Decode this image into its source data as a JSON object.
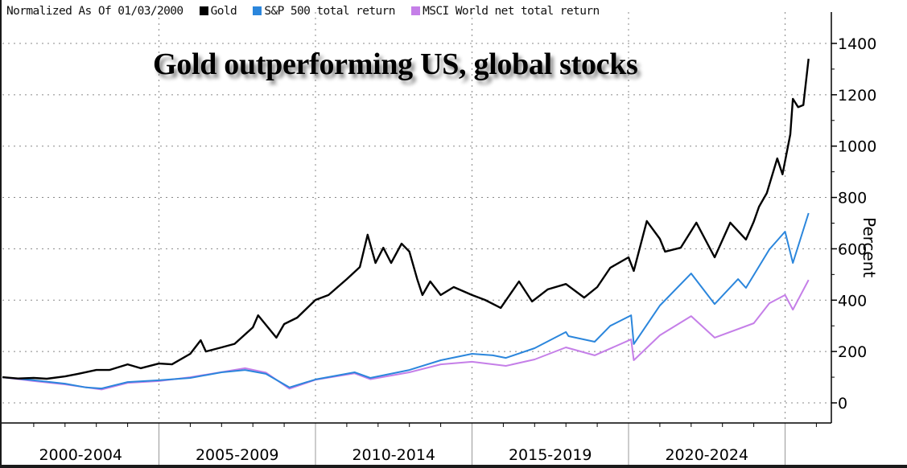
{
  "chart_data": {
    "type": "line",
    "title": "Gold outperforming US, global stocks",
    "legend_title": "Normalized As Of 01/03/2000",
    "legend_placement": "top-left",
    "ylabel": "Percent",
    "ylim": [
      -80,
      1480
    ],
    "yticks": [
      0,
      200,
      400,
      600,
      800,
      1000,
      1200,
      1400
    ],
    "xlim": [
      "2000-01",
      "2026-04"
    ],
    "x_bands": [
      "2000-2004",
      "2005-2009",
      "2010-2014",
      "2015-2019",
      "2020-2024"
    ],
    "grid": true,
    "series": [
      {
        "name": "Gold",
        "color": "#000000",
        "points": [
          [
            "2000-01",
            100
          ],
          [
            "2000-07",
            95
          ],
          [
            "2001-01",
            97
          ],
          [
            "2001-06",
            94
          ],
          [
            "2002-01",
            103
          ],
          [
            "2002-06",
            113
          ],
          [
            "2003-01",
            128
          ],
          [
            "2003-06",
            128
          ],
          [
            "2004-01",
            150
          ],
          [
            "2004-06",
            135
          ],
          [
            "2005-01",
            153
          ],
          [
            "2005-06",
            150
          ],
          [
            "2006-01",
            191
          ],
          [
            "2006-05",
            244
          ],
          [
            "2006-07",
            200
          ],
          [
            "2007-01",
            216
          ],
          [
            "2007-06",
            230
          ],
          [
            "2008-01",
            294
          ],
          [
            "2008-03",
            341
          ],
          [
            "2008-10",
            254
          ],
          [
            "2009-01",
            307
          ],
          [
            "2009-06",
            332
          ],
          [
            "2010-01",
            401
          ],
          [
            "2010-06",
            420
          ],
          [
            "2011-01",
            482
          ],
          [
            "2011-06",
            529
          ],
          [
            "2011-09",
            655
          ],
          [
            "2011-12",
            545
          ],
          [
            "2012-03",
            604
          ],
          [
            "2012-06",
            545
          ],
          [
            "2012-10",
            620
          ],
          [
            "2013-01",
            589
          ],
          [
            "2013-04",
            482
          ],
          [
            "2013-06",
            420
          ],
          [
            "2013-09",
            473
          ],
          [
            "2014-01",
            420
          ],
          [
            "2014-06",
            451
          ],
          [
            "2015-01",
            420
          ],
          [
            "2015-06",
            401
          ],
          [
            "2015-12",
            370
          ],
          [
            "2016-07",
            473
          ],
          [
            "2016-12",
            395
          ],
          [
            "2017-06",
            442
          ],
          [
            "2018-01",
            463
          ],
          [
            "2018-08",
            410
          ],
          [
            "2019-01",
            451
          ],
          [
            "2019-06",
            526
          ],
          [
            "2020-01",
            567
          ],
          [
            "2020-03",
            514
          ],
          [
            "2020-08",
            708
          ],
          [
            "2021-01",
            639
          ],
          [
            "2021-03",
            589
          ],
          [
            "2021-09",
            604
          ],
          [
            "2022-03",
            702
          ],
          [
            "2022-10",
            567
          ],
          [
            "2023-04",
            702
          ],
          [
            "2023-10",
            636
          ],
          [
            "2024-01",
            706
          ],
          [
            "2024-03",
            764
          ],
          [
            "2024-06",
            817
          ],
          [
            "2024-10",
            952
          ],
          [
            "2024-12",
            890
          ],
          [
            "2025-03",
            1046
          ],
          [
            "2025-04",
            1184
          ],
          [
            "2025-06",
            1152
          ],
          [
            "2025-08",
            1160
          ],
          [
            "2025-10",
            1340
          ]
        ]
      },
      {
        "name": "S&P 500 total return",
        "color": "#2b86dc",
        "points": [
          [
            "2000-01",
            100
          ],
          [
            "2001-01",
            88
          ],
          [
            "2002-01",
            75
          ],
          [
            "2002-09",
            60
          ],
          [
            "2003-03",
            56
          ],
          [
            "2004-01",
            81
          ],
          [
            "2005-01",
            88
          ],
          [
            "2006-01",
            97
          ],
          [
            "2007-01",
            119
          ],
          [
            "2007-10",
            128
          ],
          [
            "2008-06",
            113
          ],
          [
            "2009-03",
            60
          ],
          [
            "2010-01",
            91
          ],
          [
            "2011-04",
            119
          ],
          [
            "2011-10",
            97
          ],
          [
            "2013-01",
            128
          ],
          [
            "2014-01",
            166
          ],
          [
            "2015-01",
            191
          ],
          [
            "2015-09",
            185
          ],
          [
            "2016-02",
            175
          ],
          [
            "2017-01",
            213
          ],
          [
            "2018-01",
            276
          ],
          [
            "2018-02",
            260
          ],
          [
            "2018-12",
            238
          ],
          [
            "2019-06",
            300
          ],
          [
            "2020-02",
            341
          ],
          [
            "2020-03",
            229
          ],
          [
            "2021-01",
            379
          ],
          [
            "2022-01",
            504
          ],
          [
            "2022-10",
            385
          ],
          [
            "2023-07",
            482
          ],
          [
            "2023-10",
            448
          ],
          [
            "2024-07",
            598
          ],
          [
            "2025-01",
            667
          ],
          [
            "2025-04",
            545
          ],
          [
            "2025-10",
            739
          ]
        ]
      },
      {
        "name": "MSCI World net total return",
        "color": "#c57fe8",
        "points": [
          [
            "2000-01",
            100
          ],
          [
            "2001-01",
            85
          ],
          [
            "2002-01",
            72
          ],
          [
            "2003-03",
            52
          ],
          [
            "2004-01",
            78
          ],
          [
            "2005-01",
            85
          ],
          [
            "2006-01",
            100
          ],
          [
            "2007-01",
            120
          ],
          [
            "2007-10",
            135
          ],
          [
            "2008-06",
            118
          ],
          [
            "2009-03",
            55
          ],
          [
            "2010-01",
            90
          ],
          [
            "2011-04",
            115
          ],
          [
            "2011-10",
            92
          ],
          [
            "2013-01",
            119
          ],
          [
            "2014-01",
            150
          ],
          [
            "2015-01",
            160
          ],
          [
            "2016-02",
            144
          ],
          [
            "2017-01",
            169
          ],
          [
            "2018-01",
            216
          ],
          [
            "2018-12",
            185
          ],
          [
            "2020-02",
            247
          ],
          [
            "2020-03",
            166
          ],
          [
            "2021-01",
            263
          ],
          [
            "2022-01",
            338
          ],
          [
            "2022-10",
            254
          ],
          [
            "2024-01",
            310
          ],
          [
            "2024-07",
            388
          ],
          [
            "2025-01",
            420
          ],
          [
            "2025-04",
            363
          ],
          [
            "2025-10",
            479
          ]
        ]
      }
    ]
  }
}
